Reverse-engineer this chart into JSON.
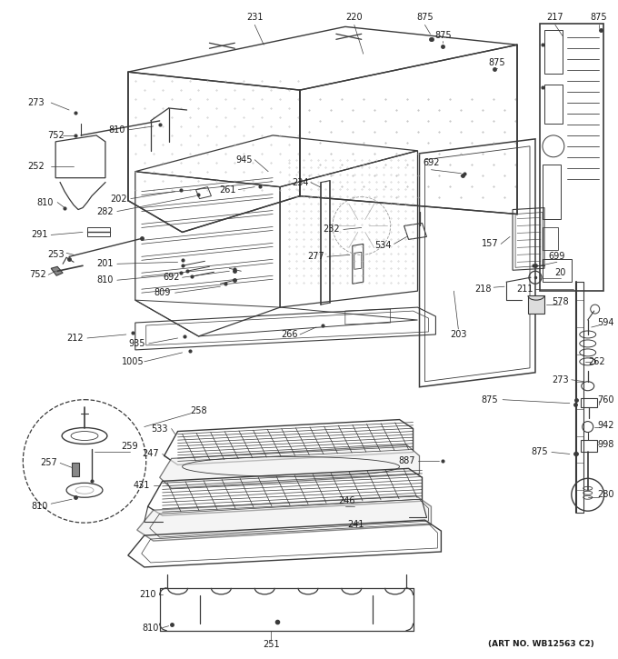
{
  "art_no": "(ART NO. WB12563 C2)",
  "bg_color": "#ffffff",
  "fig_width": 6.8,
  "fig_height": 7.25,
  "dpi": 100,
  "lc": "#3a3a3a",
  "tc": "#1a1a1a",
  "fs": 7.0
}
